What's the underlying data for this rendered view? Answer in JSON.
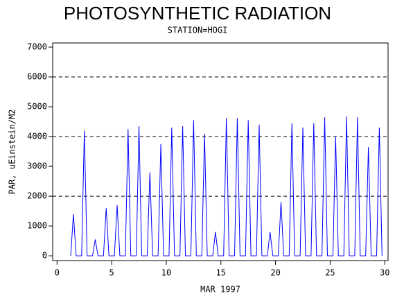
{
  "chart_data": {
    "type": "line",
    "title": "PHOTOSYNTHETIC RADIATION",
    "subtitle": "STATION=HOGI",
    "x_label": "MAR 1997",
    "y_label": "PAR, uEinstein/M2",
    "xlim": [
      -0.4,
      30.3
    ],
    "ylim": [
      -160,
      7140
    ],
    "xticks": [
      0,
      5,
      10,
      15,
      20,
      25,
      30
    ],
    "yticks": [
      0,
      1000,
      2000,
      3000,
      4000,
      5000,
      6000,
      7000
    ],
    "grid_lines": [
      2000,
      4000,
      6000
    ],
    "x": [
      1.25,
      1.5,
      1.75,
      2.25,
      2.5,
      2.75,
      3.25,
      3.5,
      3.75,
      4.25,
      4.5,
      4.75,
      5.25,
      5.5,
      5.75,
      6.25,
      6.5,
      6.75,
      7.25,
      7.5,
      7.75,
      8.25,
      8.5,
      8.75,
      9.25,
      9.5,
      9.75,
      10.25,
      10.5,
      10.75,
      11.25,
      11.5,
      11.75,
      12.25,
      12.5,
      12.75,
      13.25,
      13.5,
      13.75,
      14.25,
      14.5,
      14.75,
      15.25,
      15.5,
      15.75,
      16.25,
      16.5,
      16.75,
      17.25,
      17.5,
      17.75,
      18.25,
      18.5,
      18.75,
      19.25,
      19.5,
      19.75,
      20.25,
      20.5,
      20.75,
      21.25,
      21.5,
      21.75,
      22.25,
      22.5,
      22.75,
      23.25,
      23.5,
      23.75,
      24.25,
      24.5,
      24.75,
      25.25,
      25.5,
      25.75,
      26.25,
      26.5,
      26.75,
      27.25,
      27.5,
      27.75,
      28.25,
      28.5,
      28.75,
      29.25,
      29.5,
      29.75
    ],
    "series": [
      {
        "name": "PAR",
        "color": "#0000ff",
        "values": [
          0,
          1400,
          0,
          0,
          4200,
          0,
          0,
          550,
          0,
          0,
          1600,
          0,
          0,
          1700,
          0,
          0,
          4250,
          0,
          0,
          4350,
          0,
          0,
          2800,
          0,
          0,
          3750,
          0,
          0,
          4300,
          0,
          0,
          4350,
          0,
          0,
          4550,
          0,
          0,
          4100,
          0,
          0,
          800,
          0,
          0,
          4620,
          0,
          0,
          4620,
          0,
          0,
          4550,
          0,
          0,
          4400,
          0,
          0,
          800,
          0,
          0,
          1800,
          0,
          0,
          4450,
          0,
          0,
          4300,
          0,
          0,
          4450,
          0,
          0,
          4650,
          0,
          0,
          4000,
          0,
          0,
          4680,
          0,
          0,
          4650,
          0,
          0,
          3650,
          0,
          0,
          4300,
          0
        ]
      }
    ]
  }
}
